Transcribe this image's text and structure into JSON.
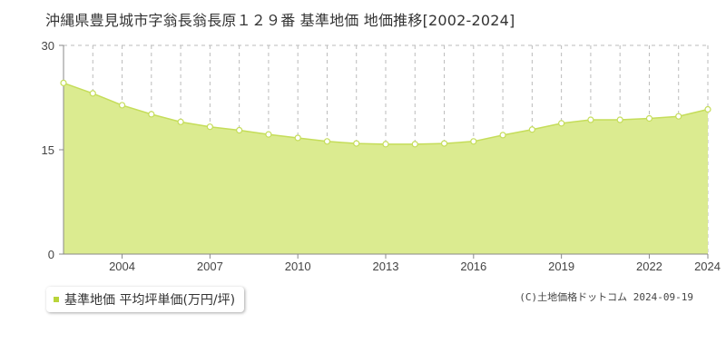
{
  "header": {
    "title": "沖縄県豊見城市字翁長翁長原１２９番 基準地価 地価推移[2002-2024]"
  },
  "legend": {
    "label": "基準地価 平均坪単価(万円/坪)"
  },
  "footer": {
    "copyright": "(C)土地価格ドットコム 2024-09-19"
  },
  "colors": {
    "area_fill": "#dbeb90",
    "line": "#c5dd5a",
    "marker_fill": "#ffffff",
    "grid_dash": "#bbbbbb",
    "axis": "#888888",
    "legend_swatch": "#b9d43a"
  },
  "chart_data": {
    "type": "area",
    "title": "沖縄県豊見城市字翁長翁長原１２９番 基準地価 地価推移[2002-2024]",
    "xlabel": "",
    "ylabel": "",
    "x": [
      2002,
      2003,
      2004,
      2005,
      2006,
      2007,
      2008,
      2009,
      2010,
      2011,
      2012,
      2013,
      2014,
      2015,
      2016,
      2017,
      2018,
      2019,
      2020,
      2021,
      2022,
      2023,
      2024
    ],
    "series": [
      {
        "name": "基準地価 平均坪単価(万円/坪)",
        "values": [
          24.6,
          23.1,
          21.4,
          20.1,
          19.0,
          18.3,
          17.8,
          17.2,
          16.7,
          16.2,
          15.9,
          15.8,
          15.8,
          15.9,
          16.2,
          17.1,
          17.9,
          18.8,
          19.3,
          19.3,
          19.5,
          19.8,
          20.8
        ]
      }
    ],
    "xlim": [
      2002,
      2024
    ],
    "ylim": [
      0,
      30
    ],
    "y_ticks": [
      0,
      15,
      30
    ],
    "x_tick_labels": [
      2004,
      2007,
      2010,
      2013,
      2016,
      2019,
      2022,
      2024
    ],
    "grid": true,
    "legend_position": "bottom-left"
  }
}
